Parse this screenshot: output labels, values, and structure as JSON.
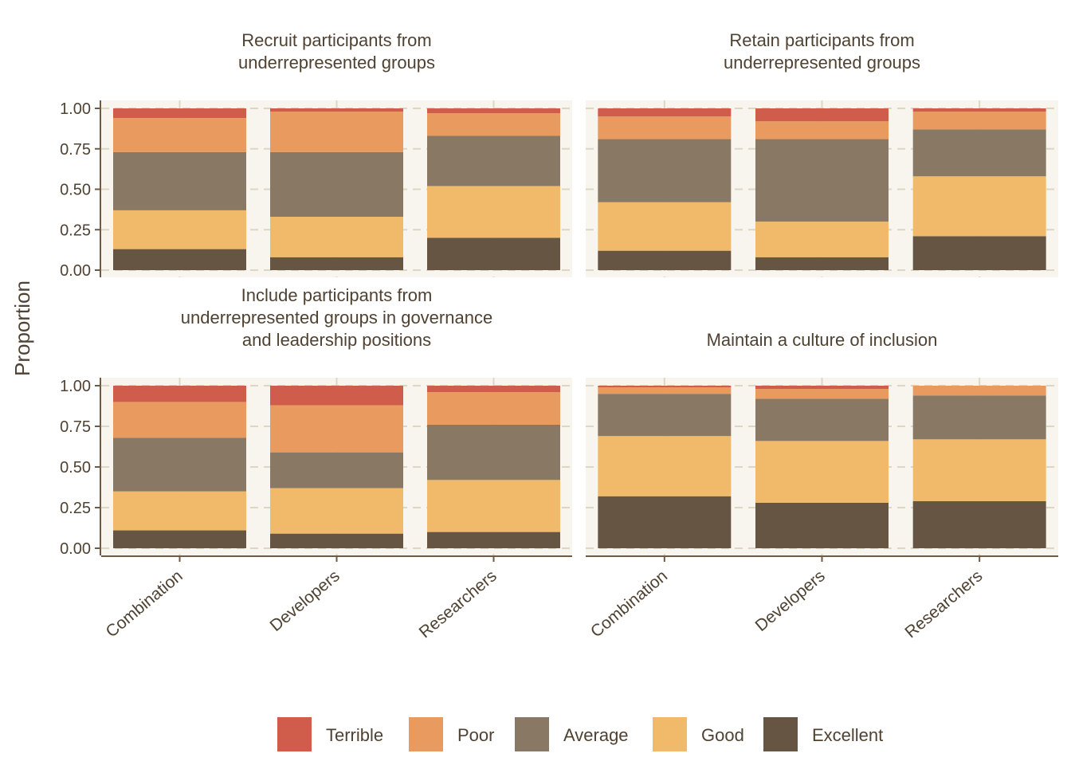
{
  "chart_data": {
    "type": "bar",
    "stacked": true,
    "ylabel": "Proportion",
    "xlabel": "",
    "ylim": [
      0,
      1
    ],
    "yticks": [
      "0.00",
      "0.25",
      "0.50",
      "0.75",
      "1.00"
    ],
    "categories": [
      "Combination",
      "Developers",
      "Researchers"
    ],
    "levels": [
      "Excellent",
      "Good",
      "Average",
      "Poor",
      "Terrible"
    ],
    "colors": {
      "Terrible": "#d05d4c",
      "Poor": "#e99a5e",
      "Average": "#897863",
      "Good": "#f0ba6a",
      "Excellent": "#665542"
    },
    "legend": {
      "position": "bottom",
      "items": [
        "Terrible",
        "Poor",
        "Average",
        "Good",
        "Excellent"
      ]
    },
    "grid": true,
    "panels": [
      {
        "title_lines": [
          "Recruit participants from",
          "underrepresented groups"
        ],
        "values": {
          "Combination": {
            "Excellent": 0.13,
            "Good": 0.24,
            "Average": 0.36,
            "Poor": 0.21,
            "Terrible": 0.06
          },
          "Developers": {
            "Excellent": 0.08,
            "Good": 0.25,
            "Average": 0.4,
            "Poor": 0.25,
            "Terrible": 0.02
          },
          "Researchers": {
            "Excellent": 0.2,
            "Good": 0.32,
            "Average": 0.31,
            "Poor": 0.14,
            "Terrible": 0.03
          }
        }
      },
      {
        "title_lines": [
          "Retain participants from",
          "underrepresented groups"
        ],
        "values": {
          "Combination": {
            "Excellent": 0.12,
            "Good": 0.3,
            "Average": 0.39,
            "Poor": 0.14,
            "Terrible": 0.05
          },
          "Developers": {
            "Excellent": 0.08,
            "Good": 0.22,
            "Average": 0.51,
            "Poor": 0.11,
            "Terrible": 0.08
          },
          "Researchers": {
            "Excellent": 0.21,
            "Good": 0.37,
            "Average": 0.29,
            "Poor": 0.11,
            "Terrible": 0.02
          }
        }
      },
      {
        "title_lines": [
          "Include participants from",
          "underrepresented groups in governance",
          "and leadership positions"
        ],
        "values": {
          "Combination": {
            "Excellent": 0.11,
            "Good": 0.24,
            "Average": 0.33,
            "Poor": 0.22,
            "Terrible": 0.1
          },
          "Developers": {
            "Excellent": 0.09,
            "Good": 0.28,
            "Average": 0.22,
            "Poor": 0.29,
            "Terrible": 0.12
          },
          "Researchers": {
            "Excellent": 0.1,
            "Good": 0.32,
            "Average": 0.34,
            "Poor": 0.2,
            "Terrible": 0.04
          }
        }
      },
      {
        "title_lines": [
          "Maintain a culture of inclusion"
        ],
        "values": {
          "Combination": {
            "Excellent": 0.32,
            "Good": 0.37,
            "Average": 0.26,
            "Poor": 0.04,
            "Terrible": 0.01
          },
          "Developers": {
            "Excellent": 0.28,
            "Good": 0.38,
            "Average": 0.26,
            "Poor": 0.06,
            "Terrible": 0.02
          },
          "Researchers": {
            "Excellent": 0.29,
            "Good": 0.38,
            "Average": 0.27,
            "Poor": 0.06,
            "Terrible": 0.0
          }
        }
      }
    ]
  }
}
